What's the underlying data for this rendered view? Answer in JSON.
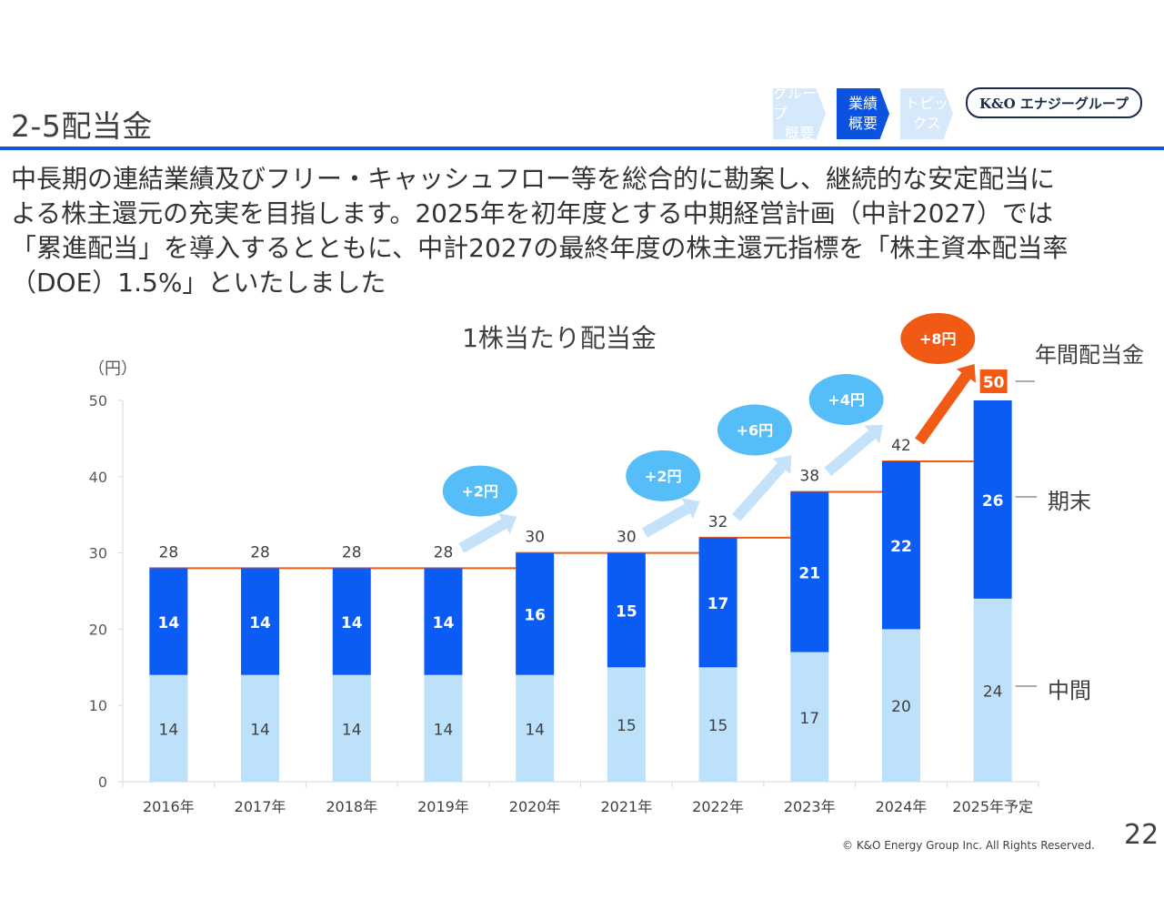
{
  "slide": {
    "title": "2-5配当金",
    "page_number": "22",
    "copyright": "© K&O Energy Group Inc. All Rights Reserved."
  },
  "nav": {
    "steps": [
      {
        "line1": "グループ",
        "line2": "概要",
        "active": false
      },
      {
        "line1": "業績",
        "line2": "概要",
        "active": true
      },
      {
        "line1": "トピッ",
        "line2": "クス",
        "active": false
      }
    ],
    "brand": "K&O エナジーグループ"
  },
  "body_text": "中長期の連結業績及びフリー・キャッシュフロー等を総合的に勘案し、継続的な安定配当に\nよる株主還元の充実を目指します。2025年を初年度とする中期経営計画（中計2027）では\n「累進配当」を導入するとともに、中計2027の最終年度の株主還元指標を「株主資本配当率\n（DOE）1.5%」といたしました",
  "colors": {
    "interim": "#bde1fb",
    "year_end": "#0a5cf5",
    "orange": "#f05a14",
    "increase_bubble": "#55bdf8",
    "increase_arrow": "#c4e3fa",
    "rule": "#1558d6"
  },
  "chart_data": {
    "type": "bar",
    "stacked": true,
    "title": "1株当たり配当金",
    "ylabel": "（円）",
    "xlabel": "",
    "ylim": [
      0,
      50
    ],
    "yticks": [
      0,
      10,
      20,
      30,
      40,
      50
    ],
    "categories": [
      "2016年",
      "2017年",
      "2018年",
      "2019年",
      "2020年",
      "2021年",
      "2022年",
      "2023年",
      "2024年",
      "2025年予定"
    ],
    "series": [
      {
        "name": "中間",
        "values": [
          14,
          14,
          14,
          14,
          14,
          15,
          15,
          17,
          20,
          24
        ]
      },
      {
        "name": "期末",
        "values": [
          14,
          14,
          14,
          14,
          16,
          15,
          17,
          21,
          22,
          26
        ]
      }
    ],
    "totals": [
      28,
      28,
      28,
      28,
      30,
      30,
      32,
      38,
      42,
      50
    ],
    "total_label": "年間配当金",
    "increases": [
      {
        "from": "2019年",
        "to": "2020年",
        "label": "+2円",
        "highlight": false
      },
      {
        "from": "2021年",
        "to": "2022年",
        "label": "+2円",
        "highlight": false
      },
      {
        "from": "2022年",
        "to": "2023年",
        "label": "+6円",
        "highlight": false
      },
      {
        "from": "2023年",
        "to": "2024年",
        "label": "+4円",
        "highlight": false
      },
      {
        "from": "2024年",
        "to": "2025年予定",
        "label": "+8円",
        "highlight": true
      }
    ],
    "legend": [
      "年間配当金",
      "期末",
      "中間"
    ],
    "legend_position": "right",
    "grid": false
  }
}
